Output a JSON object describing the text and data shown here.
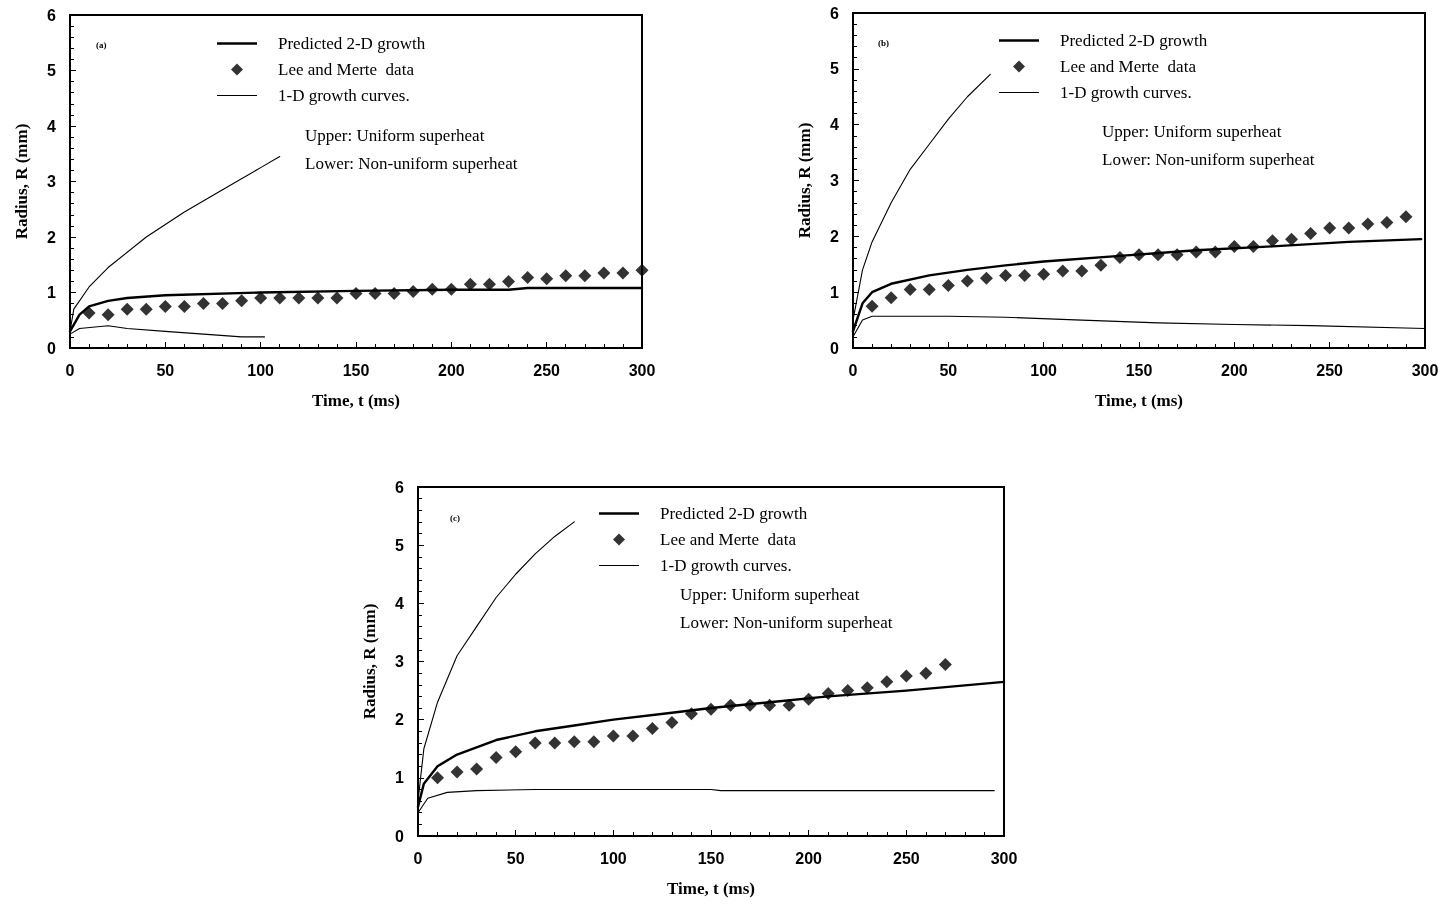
{
  "chart_data": [
    {
      "type": "line",
      "xlabel": "Time, t (ms)",
      "ylabel": "Radius, R (mm)",
      "xlim": [
        0,
        300
      ],
      "xticks": [
        0,
        50,
        100,
        150,
        200,
        250,
        300
      ],
      "ylim": [
        0,
        6
      ],
      "yticks": [
        0,
        1,
        2,
        3,
        4,
        5,
        6
      ],
      "grid": false,
      "legend": "top",
      "annotations": [
        "(a)",
        "Upper: Uniform superheat",
        "Lower: Non-uniform superheat"
      ],
      "series": [
        {
          "name": "Predicted 2-D growth",
          "type": "line",
          "color": "#000000",
          "marker": "none",
          "line_style": "solid",
          "x": [
            0,
            5,
            10,
            20,
            30,
            50,
            100,
            150,
            200,
            230,
            240,
            300
          ],
          "values": [
            0.3,
            0.6,
            0.75,
            0.85,
            0.9,
            0.95,
            1.0,
            1.03,
            1.05,
            1.05,
            1.08,
            1.08
          ]
        },
        {
          "name": "Lee and Merte  data",
          "type": "scatter",
          "color": "#000000",
          "marker": "diamond",
          "x": [
            10,
            20,
            30,
            40,
            50,
            60,
            70,
            80,
            90,
            100,
            110,
            120,
            130,
            140,
            150,
            160,
            170,
            180,
            190,
            200,
            210,
            220,
            230,
            240,
            250,
            260,
            270,
            280,
            290,
            300
          ],
          "values": [
            0.63,
            0.6,
            0.7,
            0.7,
            0.75,
            0.75,
            0.8,
            0.8,
            0.85,
            0.9,
            0.9,
            0.9,
            0.9,
            0.9,
            0.98,
            0.98,
            0.98,
            1.02,
            1.06,
            1.06,
            1.15,
            1.15,
            1.2,
            1.27,
            1.25,
            1.3,
            1.3,
            1.35,
            1.35,
            1.4
          ]
        },
        {
          "name": "1-D growth curves.",
          "type": "line",
          "color": "#000000",
          "marker": "none",
          "line_style": "solid",
          "x": [
            0,
            2,
            10,
            20,
            40,
            60,
            80,
            100,
            110
          ],
          "values": [
            0.3,
            0.7,
            1.1,
            1.45,
            2.0,
            2.45,
            2.85,
            3.25,
            3.45
          ]
        },
        {
          "type": "line",
          "color": "#000000",
          "marker": "none",
          "line_style": "solid",
          "x": [
            0,
            5,
            20,
            30,
            50,
            70,
            90,
            102
          ],
          "values": [
            0.25,
            0.35,
            0.4,
            0.35,
            0.3,
            0.25,
            0.2,
            0.2
          ]
        }
      ]
    },
    {
      "type": "line",
      "xlabel": "Time, t (ms)",
      "ylabel": "Radius, R (mm)",
      "xlim": [
        0,
        300
      ],
      "xticks": [
        0,
        50,
        100,
        150,
        200,
        250,
        300
      ],
      "ylim": [
        0,
        6
      ],
      "yticks": [
        0,
        1,
        2,
        3,
        4,
        5,
        6
      ],
      "grid": false,
      "legend": "top",
      "annotations": [
        "(b)",
        "Upper: Uniform superheat",
        "Lower: Non-uniform superheat"
      ],
      "series": [
        {
          "name": "Predicted 2-D growth",
          "type": "line",
          "color": "#000000",
          "marker": "none",
          "line_style": "solid",
          "x": [
            0,
            5,
            10,
            20,
            40,
            60,
            80,
            100,
            140,
            180,
            220,
            260,
            298
          ],
          "values": [
            0.3,
            0.8,
            1.0,
            1.15,
            1.3,
            1.4,
            1.48,
            1.55,
            1.65,
            1.75,
            1.82,
            1.9,
            1.95
          ]
        },
        {
          "name": "Lee and Merte  data",
          "type": "scatter",
          "color": "#000000",
          "marker": "diamond",
          "x": [
            10,
            20,
            30,
            40,
            50,
            60,
            70,
            80,
            90,
            100,
            110,
            120,
            130,
            140,
            150,
            160,
            170,
            180,
            190,
            200,
            210,
            220,
            230,
            240,
            250,
            260,
            270,
            280,
            290
          ],
          "values": [
            0.75,
            0.9,
            1.05,
            1.05,
            1.12,
            1.2,
            1.25,
            1.3,
            1.3,
            1.32,
            1.38,
            1.38,
            1.48,
            1.62,
            1.67,
            1.67,
            1.67,
            1.72,
            1.72,
            1.82,
            1.82,
            1.92,
            1.95,
            2.05,
            2.15,
            2.15,
            2.22,
            2.25,
            2.35
          ]
        },
        {
          "name": "1-D growth curves.",
          "type": "line",
          "color": "#000000",
          "marker": "none",
          "line_style": "solid",
          "x": [
            0,
            5,
            10,
            20,
            30,
            40,
            50,
            60,
            72
          ],
          "values": [
            0.5,
            1.4,
            1.9,
            2.6,
            3.2,
            3.65,
            4.1,
            4.5,
            4.9
          ]
        },
        {
          "type": "line",
          "color": "#000000",
          "marker": "none",
          "line_style": "solid",
          "x": [
            0,
            5,
            10,
            50,
            80,
            120,
            160,
            200,
            240,
            300
          ],
          "values": [
            0.2,
            0.5,
            0.57,
            0.57,
            0.55,
            0.5,
            0.45,
            0.42,
            0.4,
            0.35
          ]
        }
      ]
    },
    {
      "type": "line",
      "xlabel": "Time, t (ms)",
      "ylabel": "Radius, R (mm)",
      "xlim": [
        0,
        300
      ],
      "xticks": [
        0,
        50,
        100,
        150,
        200,
        250,
        300
      ],
      "ylim": [
        0,
        6
      ],
      "yticks": [
        0,
        1,
        2,
        3,
        4,
        5,
        6
      ],
      "grid": false,
      "legend": "top",
      "annotations": [
        "(c)",
        "Upper: Uniform superheat",
        "Lower: Non-uniform superheat"
      ],
      "series": [
        {
          "name": "Predicted 2-D growth",
          "type": "line",
          "color": "#000000",
          "marker": "none",
          "line_style": "solid",
          "x": [
            0,
            3,
            10,
            20,
            40,
            60,
            80,
            100,
            130,
            150,
            180,
            210,
            250,
            300
          ],
          "values": [
            0.5,
            0.9,
            1.2,
            1.4,
            1.65,
            1.8,
            1.9,
            2.0,
            2.12,
            2.2,
            2.3,
            2.4,
            2.5,
            2.65
          ]
        },
        {
          "name": "Lee and Merte  data",
          "type": "scatter",
          "color": "#000000",
          "marker": "diamond",
          "x": [
            10,
            20,
            30,
            40,
            50,
            60,
            70,
            80,
            90,
            100,
            110,
            120,
            130,
            140,
            150,
            160,
            170,
            180,
            190,
            200,
            210,
            220,
            230,
            240,
            250,
            260,
            270
          ],
          "values": [
            1.0,
            1.1,
            1.15,
            1.35,
            1.45,
            1.6,
            1.6,
            1.62,
            1.62,
            1.72,
            1.72,
            1.85,
            1.95,
            2.1,
            2.18,
            2.25,
            2.25,
            2.25,
            2.25,
            2.35,
            2.45,
            2.5,
            2.55,
            2.65,
            2.75,
            2.8,
            2.95
          ]
        },
        {
          "name": "1-D growth curves.",
          "type": "line",
          "color": "#000000",
          "marker": "none",
          "line_style": "solid",
          "x": [
            0,
            3,
            10,
            20,
            30,
            40,
            50,
            60,
            70,
            80
          ],
          "values": [
            0.6,
            1.5,
            2.3,
            3.1,
            3.6,
            4.1,
            4.5,
            4.85,
            5.15,
            5.4
          ]
        },
        {
          "type": "line",
          "color": "#000000",
          "marker": "none",
          "line_style": "solid",
          "x": [
            0,
            5,
            15,
            30,
            60,
            150,
            155,
            295
          ],
          "values": [
            0.4,
            0.65,
            0.75,
            0.78,
            0.8,
            0.8,
            0.78,
            0.78
          ]
        }
      ]
    }
  ]
}
